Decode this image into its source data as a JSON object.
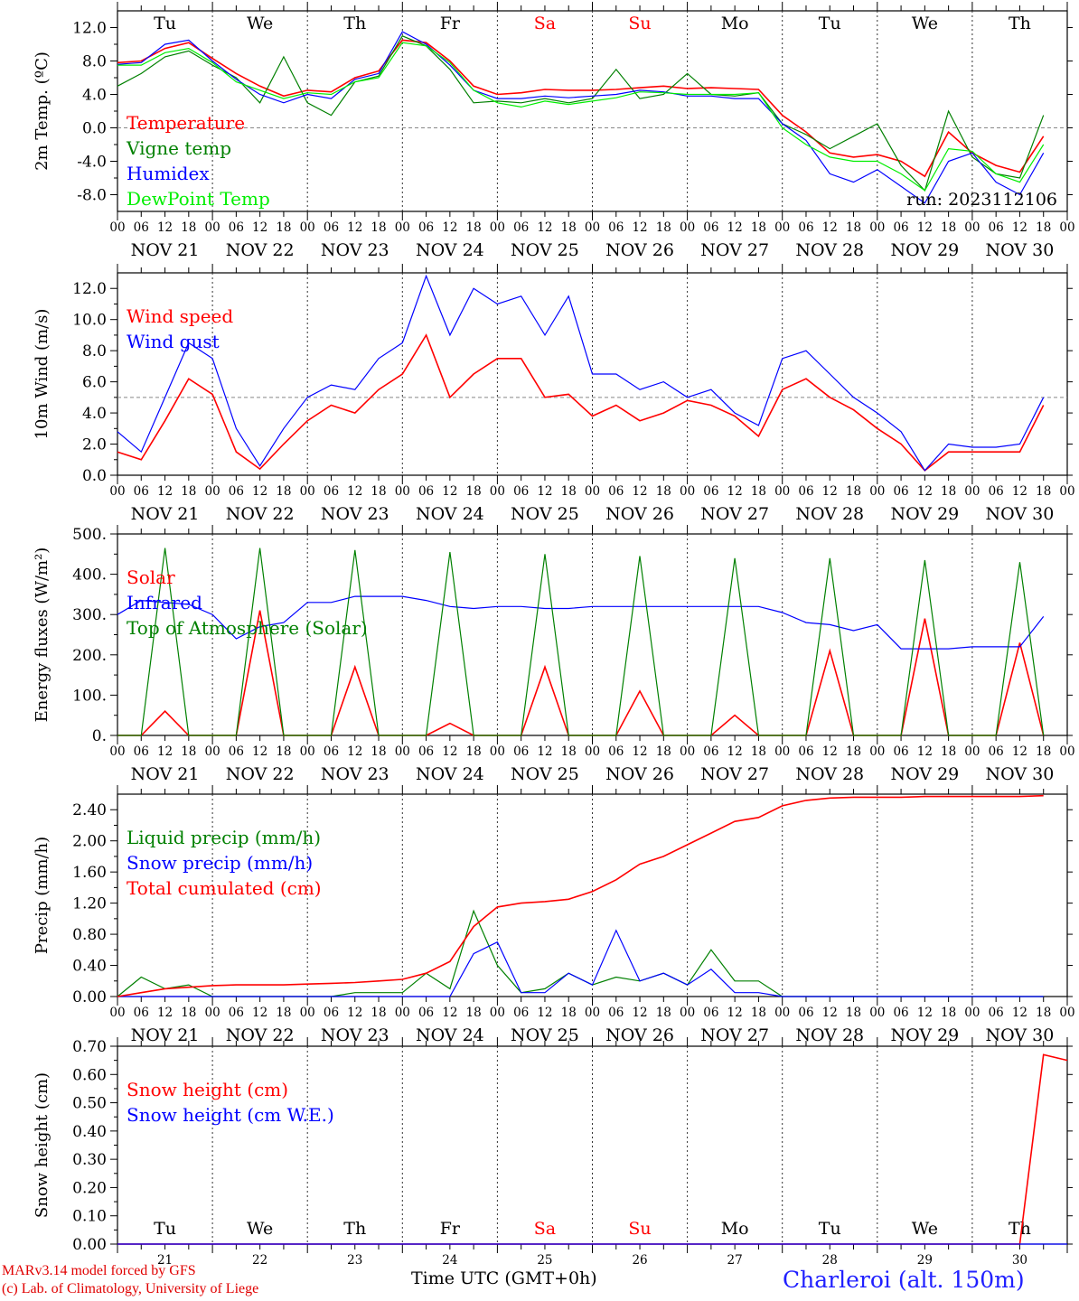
{
  "x_axis": {
    "hour_ticks": [
      "00",
      "06",
      "12",
      "18"
    ],
    "date_labels": [
      "NOV 21",
      "NOV 22",
      "NOV 23",
      "NOV 24",
      "NOV 25",
      "NOV 26",
      "NOV 27",
      "NOV 28",
      "NOV 29",
      "NOV 30"
    ],
    "day_numbers": [
      "21",
      "22",
      "23",
      "24",
      "25",
      "26",
      "27",
      "28",
      "29",
      "30"
    ],
    "weekdays": [
      "Tu",
      "We",
      "Th",
      "Fr",
      "Sa",
      "Su",
      "Mo",
      "Tu",
      "We",
      "Th"
    ],
    "weekend_indices": [
      4,
      5
    ],
    "title": "Time UTC (GMT+0h)"
  },
  "footer": {
    "line1": "MARv3.14 model forced by GFS",
    "line2": "(c) Lab. of Climatology, University of Liege",
    "station": "Charleroi (alt. 150m)"
  },
  "colors": {
    "red": "#ff0000",
    "green": "#008000",
    "blue": "#0000ff",
    "lime": "#00ee00",
    "axis": "#000000",
    "station": "#2020ff"
  },
  "chart_data": [
    {
      "type": "line",
      "ylabel": "2m Temp. (ºC)",
      "ylim": [
        -10,
        14
      ],
      "yticks": [
        -8,
        -4,
        0,
        4,
        8,
        12
      ],
      "ytick_labels": [
        "-8.0",
        "-4.0",
        "0.0",
        "4.0",
        "8.0",
        "12.0"
      ],
      "ref_line": 0,
      "run_label": "run: 2023112106",
      "x_hours": [
        0,
        6,
        12,
        18,
        24,
        30,
        36,
        42,
        48,
        54,
        60,
        66,
        72,
        78,
        84,
        90,
        96,
        102,
        108,
        114,
        120,
        126,
        132,
        138,
        144,
        150,
        156,
        162,
        168,
        174,
        180,
        186,
        192,
        198,
        204,
        210,
        216,
        222,
        228,
        234
      ],
      "series": [
        {
          "name": "Temperature",
          "color": "red",
          "values": [
            7.8,
            8.0,
            9.5,
            10.2,
            8.3,
            6.5,
            5.0,
            3.8,
            4.5,
            4.3,
            6.0,
            6.8,
            10.5,
            10.2,
            8.0,
            5.0,
            4.0,
            4.2,
            4.6,
            4.5,
            4.5,
            4.6,
            4.8,
            5.0,
            4.7,
            4.8,
            4.7,
            4.6,
            1.5,
            -0.5,
            -3.0,
            -3.5,
            -3.2,
            -4.0,
            -5.8,
            -0.5,
            -3.0,
            -4.5,
            -5.3,
            -1.0
          ]
        },
        {
          "name": "Vigne temp",
          "color": "green",
          "values": [
            5.0,
            6.5,
            8.5,
            9.2,
            7.5,
            6.0,
            3.0,
            8.5,
            3.0,
            1.5,
            5.5,
            6.2,
            11.0,
            9.8,
            7.0,
            3.0,
            3.2,
            3.0,
            3.5,
            3.0,
            3.5,
            7.0,
            3.5,
            4.0,
            6.5,
            4.0,
            3.8,
            4.2,
            0.5,
            -0.8,
            -2.5,
            -1.0,
            0.5,
            -4.5,
            -7.5,
            2.0,
            -3.5,
            -5.5,
            -6.0,
            1.5
          ]
        },
        {
          "name": "Humidex",
          "color": "blue",
          "values": [
            7.6,
            7.8,
            10.0,
            10.5,
            8.0,
            5.8,
            4.0,
            3.0,
            4.0,
            3.5,
            5.8,
            6.5,
            11.5,
            10.0,
            7.5,
            4.5,
            3.5,
            3.5,
            3.8,
            3.6,
            3.8,
            4.0,
            4.5,
            4.3,
            3.8,
            3.8,
            3.5,
            3.5,
            0.5,
            -1.5,
            -5.5,
            -6.5,
            -5.0,
            -7.0,
            -9.0,
            -4.0,
            -3.0,
            -6.5,
            -8.0,
            -3.0
          ]
        },
        {
          "name": "DewPoint Temp",
          "color": "lime",
          "values": [
            7.5,
            7.5,
            9.0,
            9.5,
            7.8,
            5.5,
            4.5,
            3.5,
            4.2,
            4.0,
            5.5,
            6.0,
            10.2,
            9.8,
            7.8,
            4.5,
            3.0,
            2.5,
            3.2,
            2.8,
            3.2,
            3.6,
            4.3,
            4.2,
            4.0,
            4.0,
            4.0,
            4.2,
            0.0,
            -2.0,
            -3.5,
            -4.0,
            -4.0,
            -5.5,
            -7.5,
            -2.5,
            -2.8,
            -5.5,
            -6.5,
            -2.0
          ]
        }
      ]
    },
    {
      "type": "line",
      "ylabel": "10m Wind (m/s)",
      "ylim": [
        0,
        13
      ],
      "yticks": [
        0,
        2,
        4,
        6,
        8,
        10,
        12
      ],
      "ytick_labels": [
        "0.0",
        "2.0",
        "4.0",
        "6.0",
        "8.0",
        "10.0",
        "12.0"
      ],
      "ref_line": 5,
      "x_hours": [
        0,
        6,
        12,
        18,
        24,
        30,
        36,
        42,
        48,
        54,
        60,
        66,
        72,
        78,
        84,
        90,
        96,
        102,
        108,
        114,
        120,
        126,
        132,
        138,
        144,
        150,
        156,
        162,
        168,
        174,
        180,
        186,
        192,
        198,
        204,
        210,
        216,
        222,
        228,
        234
      ],
      "series": [
        {
          "name": "Wind speed",
          "color": "red",
          "values": [
            1.5,
            1.0,
            3.5,
            6.2,
            5.2,
            1.5,
            0.4,
            2.0,
            3.5,
            4.5,
            4.0,
            5.5,
            6.5,
            9.0,
            5.0,
            6.5,
            7.5,
            7.5,
            5.0,
            5.2,
            3.8,
            4.5,
            3.5,
            4.0,
            4.8,
            4.5,
            3.8,
            2.5,
            5.5,
            6.2,
            5.0,
            4.2,
            3.0,
            2.0,
            0.3,
            1.5,
            1.5,
            1.5,
            1.5,
            4.5
          ]
        },
        {
          "name": "Wind gust",
          "color": "blue",
          "values": [
            2.8,
            1.5,
            5.0,
            8.5,
            7.5,
            3.0,
            0.6,
            3.0,
            5.0,
            5.8,
            5.5,
            7.5,
            8.5,
            12.8,
            9.0,
            12.0,
            11.0,
            11.5,
            9.0,
            11.5,
            6.5,
            6.5,
            5.5,
            6.0,
            5.0,
            5.5,
            4.0,
            3.2,
            7.5,
            8.0,
            6.5,
            5.0,
            4.0,
            2.8,
            0.3,
            2.0,
            1.8,
            1.8,
            2.0,
            5.0
          ]
        }
      ]
    },
    {
      "type": "line",
      "ylabel": "Energy fluxes (W/m²)",
      "ylim": [
        0,
        500
      ],
      "yticks": [
        0,
        100,
        200,
        300,
        400,
        500
      ],
      "ytick_labels": [
        "0.",
        "100.",
        "200.",
        "300.",
        "400.",
        "500."
      ],
      "x_hours": [
        0,
        6,
        12,
        18,
        24,
        30,
        36,
        42,
        48,
        54,
        60,
        66,
        72,
        78,
        84,
        90,
        96,
        102,
        108,
        114,
        120,
        126,
        132,
        138,
        144,
        150,
        156,
        162,
        168,
        174,
        180,
        186,
        192,
        198,
        204,
        210,
        216,
        222,
        228,
        234
      ],
      "series": [
        {
          "name": "Solar",
          "color": "red",
          "values": [
            0,
            0,
            60,
            0,
            0,
            0,
            310,
            0,
            0,
            0,
            170,
            0,
            0,
            0,
            30,
            0,
            0,
            0,
            170,
            0,
            0,
            0,
            110,
            0,
            0,
            0,
            50,
            0,
            0,
            0,
            210,
            0,
            0,
            0,
            290,
            0,
            0,
            0,
            230,
            0
          ]
        },
        {
          "name": "Infrared",
          "color": "blue",
          "values": [
            300,
            335,
            330,
            325,
            300,
            240,
            270,
            280,
            330,
            330,
            345,
            345,
            345,
            335,
            320,
            315,
            320,
            320,
            315,
            315,
            320,
            320,
            320,
            320,
            320,
            320,
            320,
            320,
            305,
            280,
            275,
            260,
            275,
            215,
            215,
            215,
            220,
            220,
            220,
            295
          ]
        },
        {
          "name": "Top of Atmosphere (Solar)",
          "color": "green",
          "values": [
            0,
            0,
            465,
            0,
            0,
            0,
            465,
            0,
            0,
            0,
            460,
            0,
            0,
            0,
            455,
            0,
            0,
            0,
            450,
            0,
            0,
            0,
            445,
            0,
            0,
            0,
            440,
            0,
            0,
            0,
            440,
            0,
            0,
            0,
            435,
            0,
            0,
            0,
            430,
            0
          ]
        }
      ]
    },
    {
      "type": "line",
      "ylabel": "Precip (mm/h)",
      "ylim": [
        0,
        2.6
      ],
      "yticks": [
        0,
        0.4,
        0.8,
        1.2,
        1.6,
        2.0,
        2.4
      ],
      "ytick_labels": [
        "0.00",
        "0.40",
        "0.80",
        "1.20",
        "1.60",
        "2.00",
        "2.40"
      ],
      "x_hours": [
        0,
        6,
        12,
        18,
        24,
        30,
        36,
        42,
        48,
        54,
        60,
        66,
        72,
        78,
        84,
        90,
        96,
        102,
        108,
        114,
        120,
        126,
        132,
        138,
        144,
        150,
        156,
        162,
        168,
        174,
        180,
        186,
        192,
        198,
        204,
        210,
        216,
        222,
        228,
        234
      ],
      "series": [
        {
          "name": "Liquid precip (mm/h)",
          "color": "green",
          "values": [
            0,
            0.25,
            0.1,
            0.15,
            0,
            0,
            0,
            0,
            0,
            0,
            0.05,
            0.05,
            0.05,
            0.3,
            0.1,
            1.1,
            0.4,
            0.05,
            0.1,
            0.3,
            0.15,
            0.25,
            0.2,
            0.3,
            0.15,
            0.6,
            0.2,
            0.2,
            0,
            0,
            0,
            0,
            0,
            0,
            0,
            0,
            0,
            0,
            0,
            0
          ]
        },
        {
          "name": "Snow precip (mm/h)",
          "color": "blue",
          "values": [
            0,
            0,
            0,
            0,
            0,
            0,
            0,
            0,
            0,
            0,
            0,
            0,
            0,
            0,
            0,
            0.55,
            0.7,
            0.05,
            0.05,
            0.3,
            0.15,
            0.85,
            0.2,
            0.3,
            0.15,
            0.35,
            0.05,
            0.05,
            0,
            0,
            0,
            0,
            0,
            0,
            0,
            0,
            0,
            0,
            0,
            0
          ]
        },
        {
          "name": "Total cumulated (cm)",
          "color": "red",
          "values": [
            0,
            0.05,
            0.1,
            0.12,
            0.14,
            0.15,
            0.15,
            0.15,
            0.16,
            0.17,
            0.18,
            0.2,
            0.22,
            0.3,
            0.45,
            0.9,
            1.15,
            1.2,
            1.22,
            1.25,
            1.35,
            1.5,
            1.7,
            1.8,
            1.95,
            2.1,
            2.25,
            2.3,
            2.45,
            2.52,
            2.55,
            2.56,
            2.56,
            2.56,
            2.57,
            2.57,
            2.57,
            2.57,
            2.57,
            2.58
          ]
        }
      ]
    },
    {
      "type": "line",
      "ylabel": "Snow height (cm)",
      "ylim": [
        0,
        0.7
      ],
      "yticks": [
        0,
        0.1,
        0.2,
        0.3,
        0.4,
        0.5,
        0.6,
        0.7
      ],
      "ytick_labels": [
        "0.00",
        "0.10",
        "0.20",
        "0.30",
        "0.40",
        "0.50",
        "0.60",
        "0.70"
      ],
      "x_hours": [
        0,
        6,
        12,
        18,
        24,
        30,
        36,
        42,
        48,
        54,
        60,
        66,
        72,
        78,
        84,
        90,
        96,
        102,
        108,
        114,
        120,
        126,
        132,
        138,
        144,
        150,
        156,
        162,
        168,
        174,
        180,
        186,
        192,
        198,
        204,
        210,
        216,
        222,
        228,
        234,
        240
      ],
      "series": [
        {
          "name": "Snow height (cm)",
          "color": "red",
          "values": [
            0,
            0,
            0,
            0,
            0,
            0,
            0,
            0,
            0,
            0,
            0,
            0,
            0,
            0,
            0,
            0,
            0,
            0,
            0,
            0,
            0,
            0,
            0,
            0,
            0,
            0,
            0,
            0,
            0,
            0,
            0,
            0,
            0,
            0,
            0,
            0,
            0,
            0,
            0,
            0.67,
            0.65
          ]
        },
        {
          "name": "Snow height (cm W.E.)",
          "color": "blue",
          "values": [
            0,
            0,
            0,
            0,
            0,
            0,
            0,
            0,
            0,
            0,
            0,
            0,
            0,
            0,
            0,
            0,
            0,
            0,
            0,
            0,
            0,
            0,
            0,
            0,
            0,
            0,
            0,
            0,
            0,
            0,
            0,
            0,
            0,
            0,
            0,
            0,
            0,
            0,
            0,
            0,
            0
          ]
        }
      ]
    }
  ]
}
